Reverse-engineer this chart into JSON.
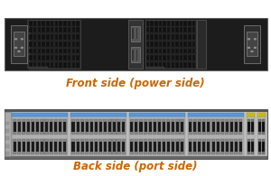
{
  "bg_color": "#ffffff",
  "label1": "Front side (power side)",
  "label2": "Back side (port side)",
  "label_color": "#cc6600",
  "label_fontsize": 8.5,
  "label_fontweight": "bold",
  "ps_body_color": "#1c1c1c",
  "ps_body": [
    0.015,
    0.6,
    0.97,
    0.3
  ],
  "port_body_color": "#c8c8c8",
  "port_body": [
    0.015,
    0.1,
    0.97,
    0.28
  ],
  "fan_color": "#2a2a2a",
  "fan_cell_color": "#111111",
  "power_inlet_bg": "#333333",
  "power_inlet_pin": "#888888",
  "port_group_blue": "#5599dd",
  "port_socket_color": "#777777",
  "port_socket_inner": "#1a1a1a",
  "sfp_yellow": "#ccbb00",
  "connector_gray": "#444444"
}
